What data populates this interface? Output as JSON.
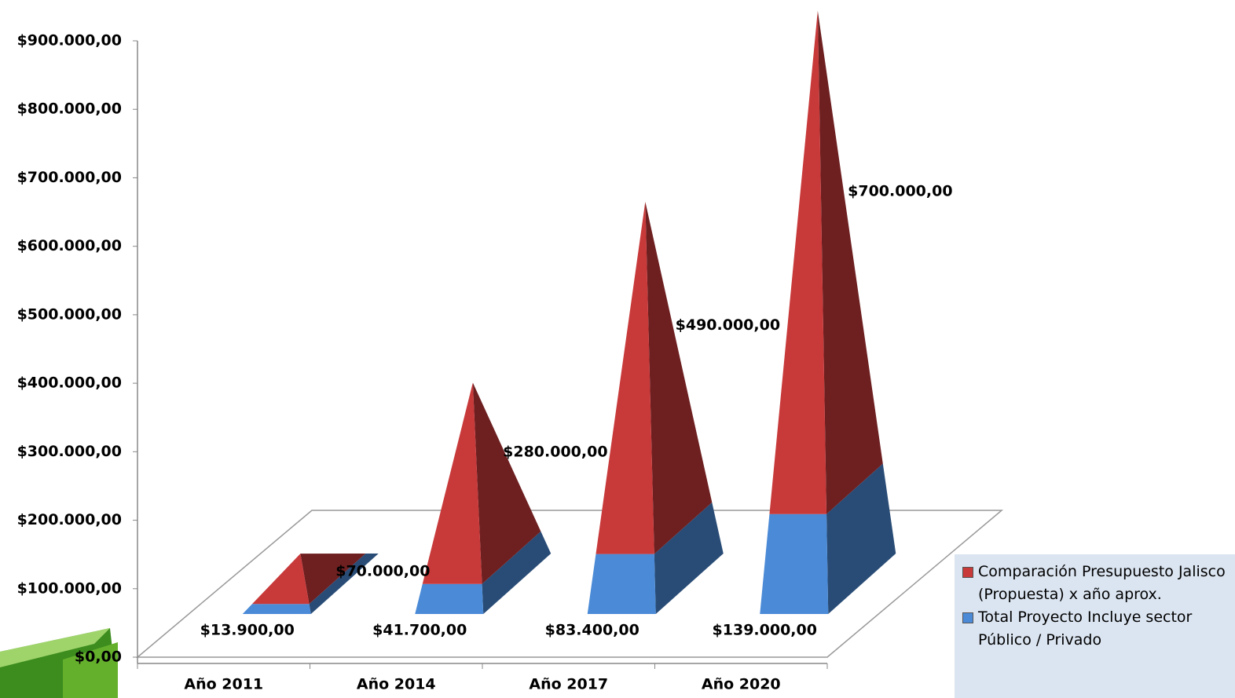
{
  "chart_data": {
    "type": "stacked-pyramid",
    "categories": [
      "Año 2011",
      "Año 2014",
      "Año 2017",
      "Año 2020"
    ],
    "series": [
      {
        "name": "Comparación Presupuesto Jalisco (Propuesta) x año aprox.",
        "color": "#c8393a",
        "values": [
          70000,
          280000,
          490000,
          700000
        ],
        "value_labels": [
          "$70.000,00",
          "$280.000,00",
          "$490.000,00",
          "$700.000,00"
        ]
      },
      {
        "name": "Total Proyecto Incluye sector Público / Privado",
        "color": "#4a8ad6",
        "values": [
          13900,
          41700,
          83400,
          139000
        ],
        "value_labels": [
          "$13.900,00",
          "$41.700,00",
          "$83.400,00",
          "$139.000,00"
        ]
      }
    ],
    "ylim": [
      0,
      900000
    ],
    "yticks": [
      {
        "value": 0,
        "label": "$0,00"
      },
      {
        "value": 100000,
        "label": "$100.000,00"
      },
      {
        "value": 200000,
        "label": "$200.000,00"
      },
      {
        "value": 300000,
        "label": "$300.000,00"
      },
      {
        "value": 400000,
        "label": "$400.000,00"
      },
      {
        "value": 500000,
        "label": "$500.000,00"
      },
      {
        "value": 600000,
        "label": "$600.000,00"
      },
      {
        "value": 700000,
        "label": "$700.000,00"
      },
      {
        "value": 800000,
        "label": "$800.000,00"
      },
      {
        "value": 900000,
        "label": "$900.000,00"
      }
    ],
    "legend": "bottom-right"
  }
}
